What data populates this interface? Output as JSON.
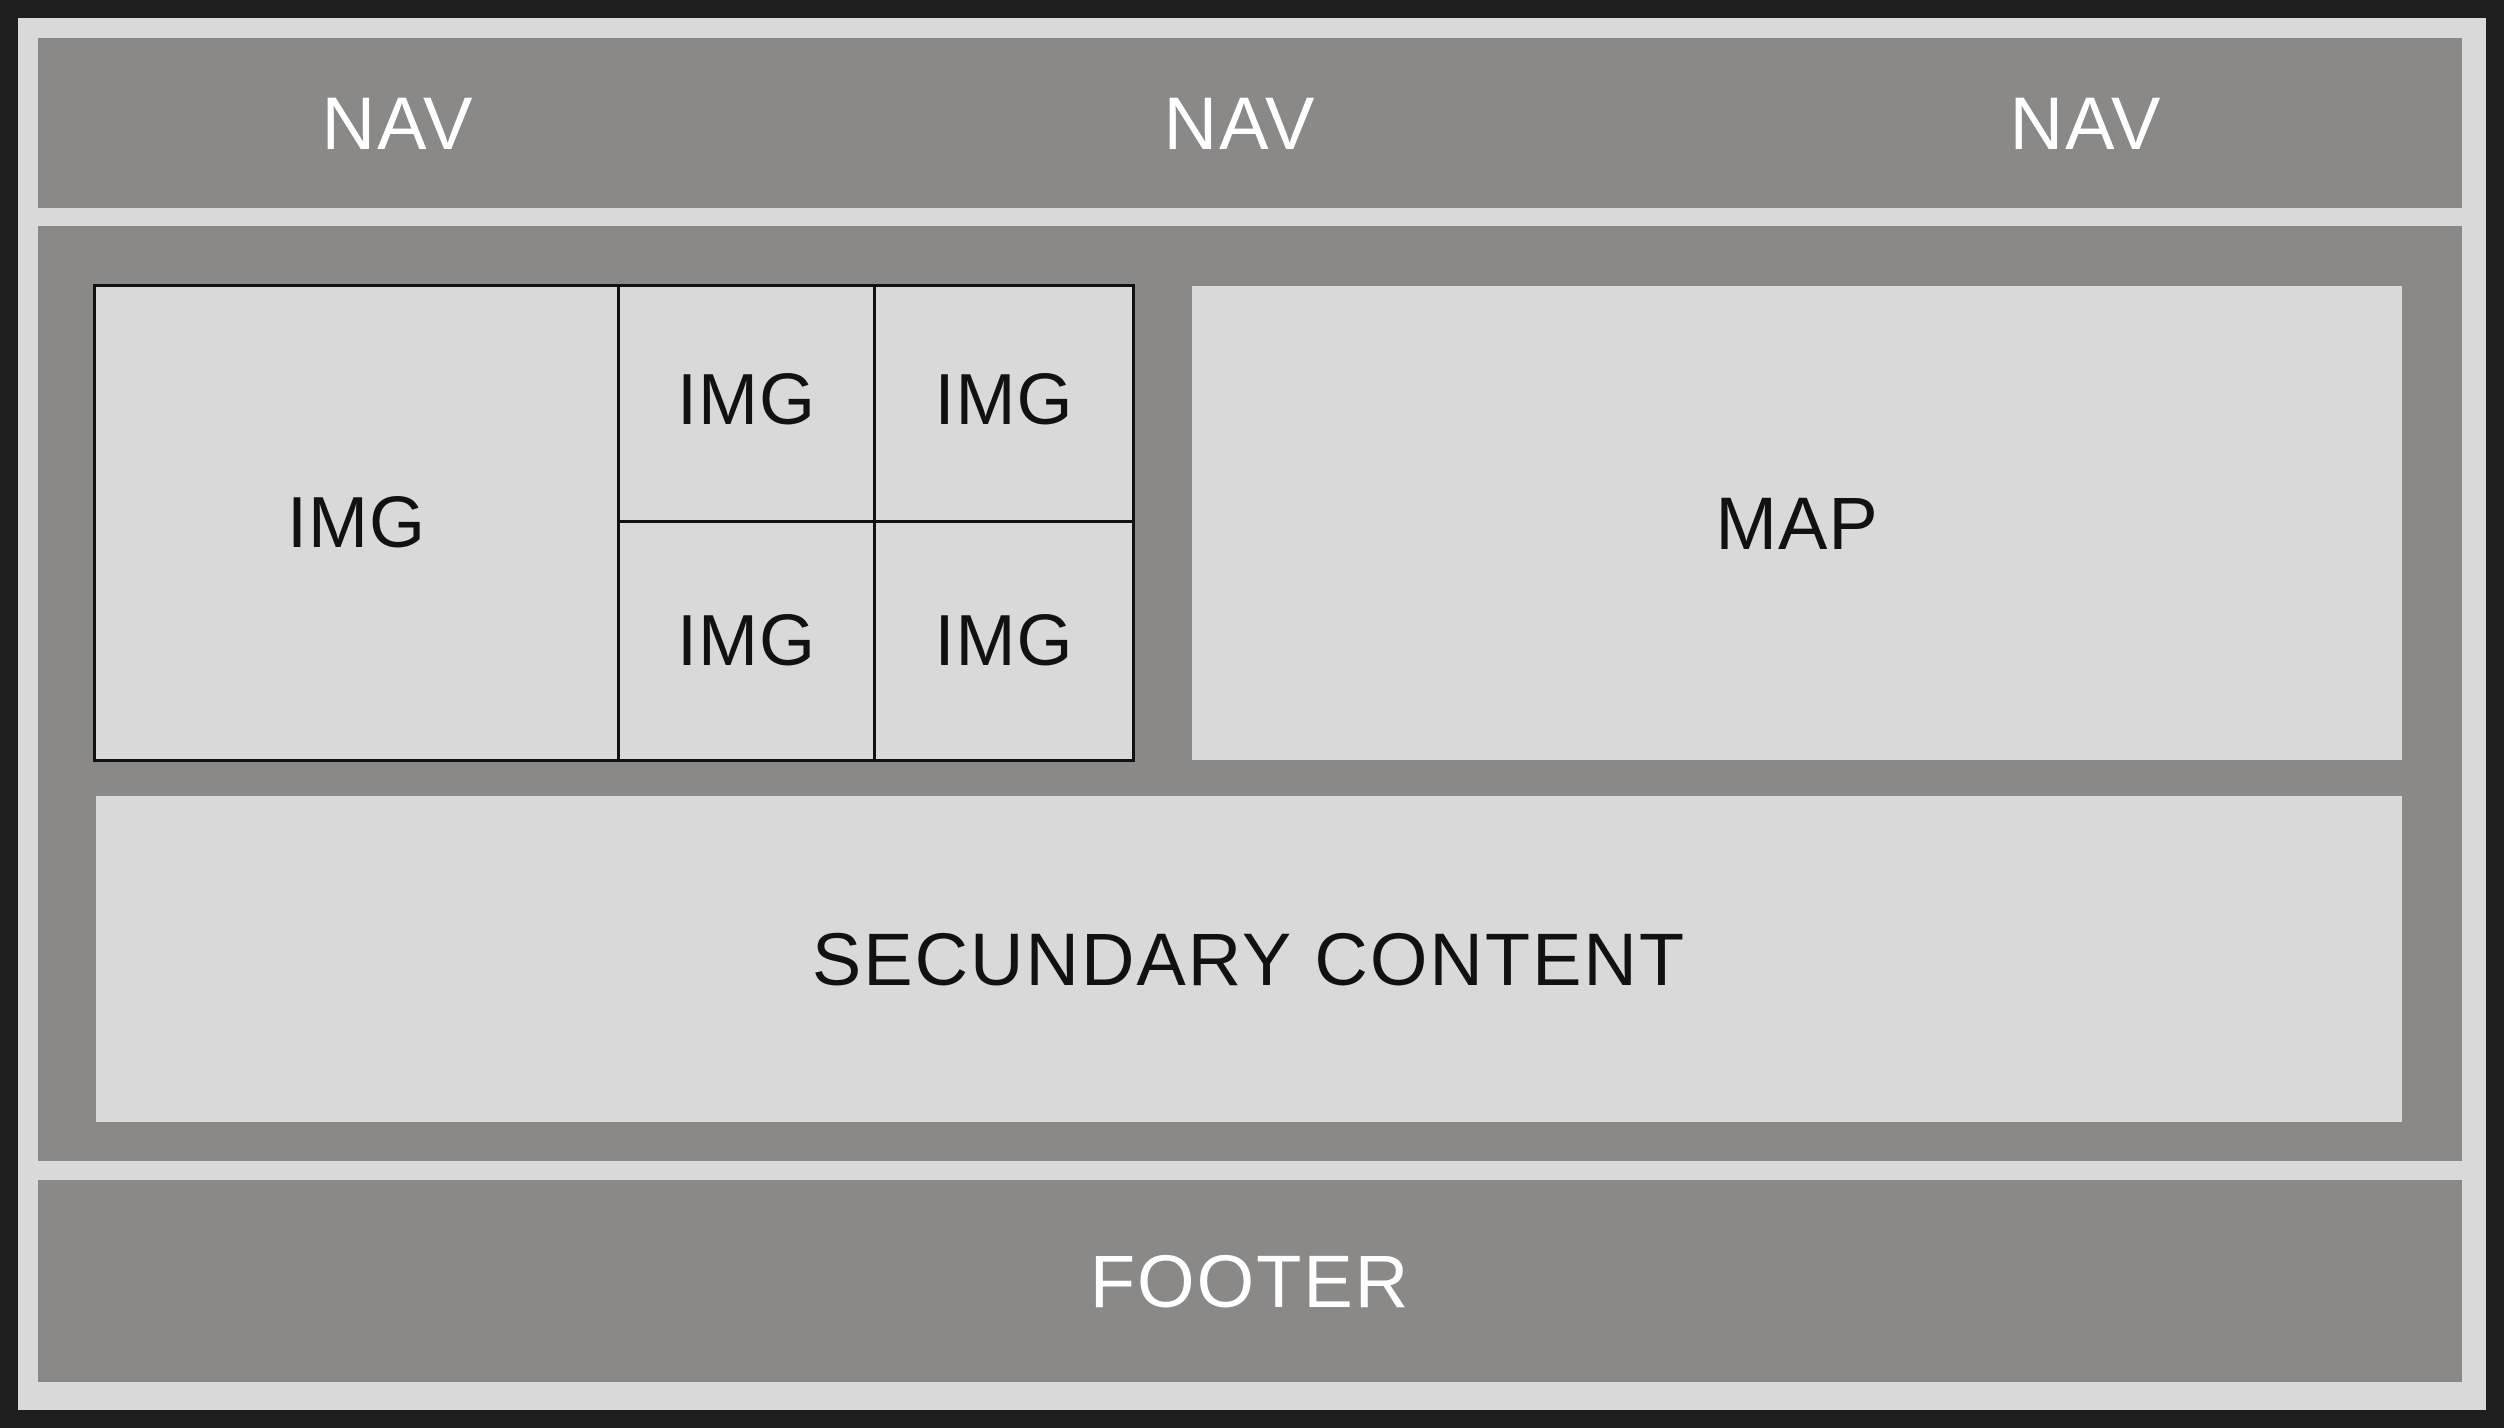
{
  "nav": {
    "items": [
      "NAV",
      "NAV",
      "NAV"
    ]
  },
  "main": {
    "gallery": {
      "images": [
        "IMG",
        "IMG",
        "IMG",
        "IMG",
        "IMG"
      ]
    },
    "map_label": "MAP",
    "secondary_label": "SECUNDARY CONTENT"
  },
  "footer": {
    "label": "FOOTER"
  },
  "colors": {
    "background": "#1e1e1e",
    "frame": "#d9d9d9",
    "block_dark": "#8a8987",
    "block_light": "#d9d9d9",
    "text_light": "#ffffff",
    "text_dark": "#111111"
  }
}
